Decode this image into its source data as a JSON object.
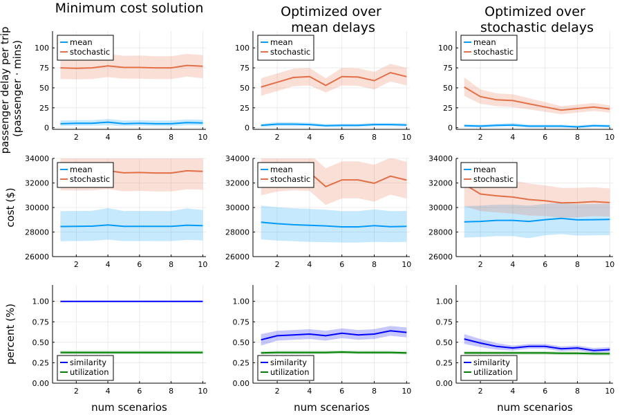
{
  "figure": {
    "column_titles": [
      [
        "Minimum cost solution"
      ],
      [
        "Optimized over",
        "mean delays"
      ],
      [
        "Optimized over",
        "stochastic delays"
      ]
    ],
    "row_ylabels": [
      [
        "passenger delay per trip",
        "(passenger · mins)"
      ],
      [
        "cost ($)"
      ],
      [
        "percent (%)"
      ]
    ],
    "xlabel": "num scenarios",
    "colors": {
      "mean": "#009AFA",
      "stochastic": "#E26F46",
      "similarity": "#0000FF",
      "utilization": "#008000"
    }
  },
  "chart_data": [
    {
      "type": "line",
      "row": 0,
      "col": 0,
      "title": "Minimum cost solution",
      "xlim": [
        0.5,
        10.2
      ],
      "ylim": [
        -2,
        121
      ],
      "yticks": [
        0,
        25,
        50,
        75,
        100
      ],
      "xticks": [
        2,
        4,
        6,
        8,
        10
      ],
      "legend": "top-left",
      "grid": true,
      "x": [
        1,
        2,
        3,
        4,
        5,
        6,
        7,
        8,
        9,
        10
      ],
      "series": [
        {
          "name": "mean",
          "values": [
            5,
            5.5,
            5.5,
            7,
            5,
            5.5,
            5,
            5,
            6.5,
            6
          ],
          "lower": [
            2,
            2.5,
            2.5,
            3,
            2,
            2.5,
            2,
            2,
            3,
            3
          ],
          "upper": [
            9,
            9.5,
            9.5,
            11,
            9,
            9.5,
            9,
            9,
            10.5,
            10
          ]
        },
        {
          "name": "stochastic",
          "values": [
            75,
            74.5,
            75,
            77.5,
            75.5,
            75.5,
            75,
            75,
            78,
            77
          ],
          "lower": [
            61,
            60.5,
            61,
            63.5,
            61.5,
            61.5,
            61,
            61,
            64,
            62
          ],
          "upper": [
            89,
            89.5,
            89,
            92.5,
            90,
            90.5,
            89.5,
            89.5,
            92.5,
            91
          ]
        }
      ]
    },
    {
      "type": "line",
      "row": 0,
      "col": 1,
      "title": "Optimized over mean delays",
      "xlim": [
        0.5,
        10.2
      ],
      "ylim": [
        -2,
        121
      ],
      "yticks": [
        0,
        25,
        50,
        75,
        100
      ],
      "xticks": [
        2,
        4,
        6,
        8,
        10
      ],
      "legend": "top-left",
      "grid": true,
      "x": [
        1,
        2,
        3,
        4,
        5,
        6,
        7,
        8,
        9,
        10
      ],
      "series": [
        {
          "name": "mean",
          "values": [
            3,
            4.5,
            4.5,
            4,
            2.5,
            3,
            3,
            4,
            4,
            3.5
          ],
          "lower": [
            1,
            2,
            2,
            2,
            1,
            1,
            1,
            2,
            2,
            1.5
          ],
          "upper": [
            5,
            7,
            7,
            6.5,
            4.5,
            5,
            5,
            6,
            6,
            5.5
          ]
        },
        {
          "name": "stochastic",
          "values": [
            51,
            57,
            63,
            64,
            53,
            64,
            63.5,
            59,
            69,
            64
          ],
          "lower": [
            40,
            46,
            52,
            53,
            44,
            53,
            52.5,
            48,
            58,
            53
          ],
          "upper": [
            62,
            68,
            74,
            75,
            62,
            75,
            74.5,
            70,
            80,
            75
          ]
        }
      ]
    },
    {
      "type": "line",
      "row": 0,
      "col": 2,
      "title": "Optimized over stochastic delays",
      "xlim": [
        0.5,
        10.2
      ],
      "ylim": [
        -2,
        121
      ],
      "yticks": [
        0,
        25,
        50,
        75,
        100
      ],
      "xticks": [
        2,
        4,
        6,
        8,
        10
      ],
      "legend": "top-left",
      "grid": true,
      "x": [
        1,
        2,
        3,
        4,
        5,
        6,
        7,
        8,
        9,
        10
      ],
      "series": [
        {
          "name": "mean",
          "values": [
            2.5,
            2,
            3,
            3.5,
            2,
            2,
            2,
            1,
            2.5,
            2
          ],
          "lower": [
            1,
            0.5,
            1,
            1.5,
            0.5,
            0.5,
            0.5,
            0,
            1,
            0.5
          ],
          "upper": [
            4.5,
            4,
            5,
            6,
            4,
            4,
            4,
            3,
            4.5,
            4
          ]
        },
        {
          "name": "stochastic",
          "values": [
            51,
            39,
            35,
            34,
            30,
            26,
            22,
            24,
            26,
            23.5
          ],
          "lower": [
            40,
            30,
            27,
            26,
            23,
            20,
            17,
            19,
            21,
            19
          ],
          "upper": [
            63,
            48,
            43,
            42,
            37,
            32,
            27,
            29,
            31,
            28
          ]
        }
      ]
    },
    {
      "type": "line",
      "row": 1,
      "col": 0,
      "xlim": [
        0.5,
        10.2
      ],
      "ylim": [
        26000,
        34000
      ],
      "yticks": [
        26000,
        28000,
        30000,
        32000,
        34000
      ],
      "xticks": [
        2,
        4,
        6,
        8,
        10
      ],
      "legend": "top-left",
      "grid": true,
      "x": [
        1,
        2,
        3,
        4,
        5,
        6,
        7,
        8,
        9,
        10
      ],
      "series": [
        {
          "name": "mean",
          "values": [
            28450,
            28470,
            28480,
            28580,
            28460,
            28470,
            28460,
            28460,
            28560,
            28520
          ],
          "lower": [
            27250,
            27270,
            27280,
            27380,
            27260,
            27270,
            27260,
            27260,
            27360,
            27320
          ],
          "upper": [
            29700,
            29720,
            29730,
            29950,
            29710,
            29720,
            29710,
            29710,
            29930,
            29800
          ]
        },
        {
          "name": "stochastic",
          "values": [
            32900,
            32880,
            32890,
            33000,
            32820,
            32850,
            32810,
            32810,
            32990,
            32940
          ],
          "lower": [
            31400,
            31380,
            31390,
            31500,
            31320,
            31350,
            31310,
            31310,
            31490,
            31440
          ],
          "upper": [
            34400,
            34380,
            34390,
            34500,
            34320,
            34350,
            34310,
            34310,
            34490,
            34440
          ]
        }
      ]
    },
    {
      "type": "line",
      "row": 1,
      "col": 1,
      "xlim": [
        0.5,
        10.2
      ],
      "ylim": [
        26000,
        34000
      ],
      "yticks": [
        26000,
        28000,
        30000,
        32000,
        34000
      ],
      "xticks": [
        2,
        4,
        6,
        8,
        10
      ],
      "legend": "top-left",
      "grid": true,
      "x": [
        1,
        2,
        3,
        4,
        5,
        6,
        7,
        8,
        9,
        10
      ],
      "series": [
        {
          "name": "mean",
          "values": [
            28800,
            28680,
            28600,
            28550,
            28500,
            28420,
            28420,
            28520,
            28440,
            28460
          ],
          "lower": [
            27400,
            27300,
            27250,
            27200,
            27180,
            27150,
            27150,
            27200,
            27180,
            27200
          ],
          "upper": [
            30150,
            30020,
            29940,
            29890,
            29820,
            29700,
            29700,
            29840,
            29700,
            29720
          ]
        },
        {
          "name": "stochastic",
          "values": [
            32500,
            32800,
            32900,
            32850,
            31700,
            32250,
            32250,
            31980,
            32550,
            32230
          ],
          "lower": [
            31000,
            31300,
            31400,
            31350,
            30200,
            30750,
            30750,
            30480,
            31050,
            30730
          ],
          "upper": [
            34000,
            34300,
            34400,
            34350,
            33200,
            33750,
            33750,
            33480,
            34050,
            33730
          ]
        }
      ]
    },
    {
      "type": "line",
      "row": 1,
      "col": 2,
      "xlim": [
        0.5,
        10.2
      ],
      "ylim": [
        26000,
        34000
      ],
      "yticks": [
        26000,
        28000,
        30000,
        32000,
        34000
      ],
      "xticks": [
        2,
        4,
        6,
        8,
        10
      ],
      "legend": "top-left",
      "grid": true,
      "x": [
        1,
        2,
        3,
        4,
        5,
        6,
        7,
        8,
        9,
        10
      ],
      "series": [
        {
          "name": "mean",
          "values": [
            28830,
            28870,
            28950,
            28950,
            28870,
            29010,
            29110,
            28990,
            29010,
            29030
          ],
          "lower": [
            27550,
            27590,
            27670,
            27670,
            27500,
            27730,
            27830,
            27710,
            27730,
            27750
          ],
          "upper": [
            30110,
            30150,
            30230,
            30230,
            30150,
            30290,
            30390,
            30270,
            30290,
            30310
          ]
        },
        {
          "name": "stochastic",
          "values": [
            31900,
            31100,
            30950,
            30850,
            30650,
            30550,
            30380,
            30400,
            30480,
            30400
          ],
          "lower": [
            30100,
            29700,
            29600,
            29500,
            29350,
            29300,
            29150,
            29200,
            29300,
            29250
          ],
          "upper": [
            33700,
            32500,
            32300,
            32200,
            31950,
            31800,
            31600,
            31600,
            31650,
            31550
          ]
        }
      ]
    },
    {
      "type": "line",
      "row": 2,
      "col": 0,
      "xlim": [
        0.5,
        10.2
      ],
      "ylim": [
        0,
        1.2
      ],
      "yticks": [
        0,
        0.25,
        0.5,
        0.75,
        1
      ],
      "ytick_labels": [
        "0.00",
        "0.25",
        "0.50",
        "0.75",
        "1.00"
      ],
      "xticks": [
        2,
        4,
        6,
        8,
        10
      ],
      "legend": "bottom-left",
      "grid": true,
      "x": [
        1,
        2,
        3,
        4,
        5,
        6,
        7,
        8,
        9,
        10
      ],
      "series": [
        {
          "name": "similarity",
          "values": [
            1,
            1,
            1,
            1,
            1,
            1,
            1,
            1,
            1,
            1
          ],
          "lower": [
            1,
            1,
            1,
            1,
            1,
            1,
            1,
            1,
            1,
            1
          ],
          "upper": [
            1,
            1,
            1,
            1,
            1,
            1,
            1,
            1,
            1,
            1
          ]
        },
        {
          "name": "utilization",
          "values": [
            0.375,
            0.375,
            0.375,
            0.375,
            0.375,
            0.375,
            0.375,
            0.375,
            0.375,
            0.375
          ],
          "lower": [
            0.355,
            0.355,
            0.355,
            0.355,
            0.355,
            0.355,
            0.355,
            0.355,
            0.355,
            0.355
          ],
          "upper": [
            0.395,
            0.395,
            0.395,
            0.395,
            0.395,
            0.395,
            0.395,
            0.395,
            0.395,
            0.395
          ]
        }
      ]
    },
    {
      "type": "line",
      "row": 2,
      "col": 1,
      "xlim": [
        0.5,
        10.2
      ],
      "ylim": [
        0,
        1.2
      ],
      "yticks": [
        0,
        0.25,
        0.5,
        0.75,
        1
      ],
      "ytick_labels": [
        "0.00",
        "0.25",
        "0.50",
        "0.75",
        "1.00"
      ],
      "xticks": [
        2,
        4,
        6,
        8,
        10
      ],
      "legend": "bottom-left",
      "grid": true,
      "x": [
        1,
        2,
        3,
        4,
        5,
        6,
        7,
        8,
        9,
        10
      ],
      "series": [
        {
          "name": "similarity",
          "values": [
            0.53,
            0.58,
            0.59,
            0.6,
            0.58,
            0.61,
            0.59,
            0.6,
            0.64,
            0.62
          ],
          "lower": [
            0.46,
            0.52,
            0.53,
            0.54,
            0.52,
            0.55,
            0.53,
            0.54,
            0.58,
            0.56
          ],
          "upper": [
            0.6,
            0.64,
            0.65,
            0.66,
            0.64,
            0.67,
            0.65,
            0.66,
            0.7,
            0.68
          ]
        },
        {
          "name": "utilization",
          "values": [
            0.37,
            0.375,
            0.375,
            0.375,
            0.375,
            0.38,
            0.375,
            0.375,
            0.375,
            0.37
          ],
          "lower": [
            0.35,
            0.355,
            0.355,
            0.355,
            0.355,
            0.36,
            0.355,
            0.355,
            0.355,
            0.35
          ],
          "upper": [
            0.39,
            0.395,
            0.395,
            0.395,
            0.395,
            0.4,
            0.395,
            0.395,
            0.395,
            0.39
          ]
        }
      ]
    },
    {
      "type": "line",
      "row": 2,
      "col": 2,
      "xlim": [
        0.5,
        10.2
      ],
      "ylim": [
        0,
        1.2
      ],
      "yticks": [
        0,
        0.25,
        0.5,
        0.75,
        1
      ],
      "ytick_labels": [
        "0.00",
        "0.25",
        "0.50",
        "0.75",
        "1.00"
      ],
      "xticks": [
        2,
        4,
        6,
        8,
        10
      ],
      "legend": "bottom-left",
      "grid": true,
      "x": [
        1,
        2,
        3,
        4,
        5,
        6,
        7,
        8,
        9,
        10
      ],
      "series": [
        {
          "name": "similarity",
          "values": [
            0.54,
            0.49,
            0.45,
            0.43,
            0.45,
            0.45,
            0.42,
            0.43,
            0.4,
            0.41
          ],
          "lower": [
            0.48,
            0.44,
            0.41,
            0.4,
            0.42,
            0.42,
            0.39,
            0.4,
            0.37,
            0.38
          ],
          "upper": [
            0.6,
            0.54,
            0.49,
            0.46,
            0.48,
            0.48,
            0.45,
            0.46,
            0.43,
            0.44
          ]
        },
        {
          "name": "utilization",
          "values": [
            0.37,
            0.37,
            0.37,
            0.37,
            0.37,
            0.37,
            0.365,
            0.365,
            0.36,
            0.36
          ],
          "lower": [
            0.35,
            0.35,
            0.35,
            0.35,
            0.35,
            0.35,
            0.345,
            0.345,
            0.34,
            0.34
          ],
          "upper": [
            0.39,
            0.39,
            0.39,
            0.39,
            0.39,
            0.39,
            0.385,
            0.385,
            0.38,
            0.38
          ]
        }
      ]
    }
  ]
}
